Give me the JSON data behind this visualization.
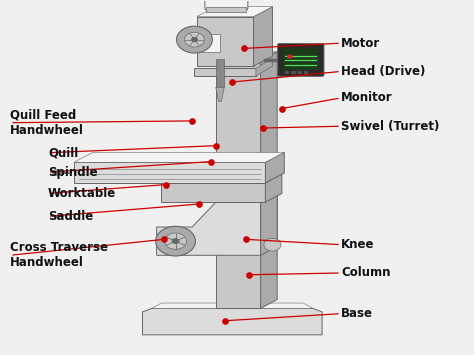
{
  "bg_color": "#f0f0f0",
  "line_color": "#cc0000",
  "dot_color": "#cc0000",
  "text_color": "#111111",
  "font_size": 8.5,
  "font_weight": "bold",
  "machine_colors": {
    "light": "#dcdcdc",
    "mid": "#c8c8c8",
    "dark": "#aaaaaa",
    "darker": "#888888",
    "edge": "#666666",
    "white": "#f4f4f4",
    "shadow": "#b0b0b0"
  },
  "annotations": [
    {
      "text": "Motor",
      "dot": [
        0.515,
        0.865
      ],
      "label": [
        0.72,
        0.88
      ],
      "ha": "left"
    },
    {
      "text": "Head (Drive)",
      "dot": [
        0.49,
        0.77
      ],
      "label": [
        0.72,
        0.8
      ],
      "ha": "left"
    },
    {
      "text": "Monitor",
      "dot": [
        0.595,
        0.695
      ],
      "label": [
        0.72,
        0.725
      ],
      "ha": "left"
    },
    {
      "text": "Swivel (Turret)",
      "dot": [
        0.555,
        0.64
      ],
      "label": [
        0.72,
        0.645
      ],
      "ha": "left"
    },
    {
      "text": "Quill Feed\nHandwheel",
      "dot": [
        0.405,
        0.66
      ],
      "label": [
        0.02,
        0.655
      ],
      "ha": "left"
    },
    {
      "text": "Quill",
      "dot": [
        0.455,
        0.59
      ],
      "label": [
        0.1,
        0.57
      ],
      "ha": "left"
    },
    {
      "text": "Spindle",
      "dot": [
        0.445,
        0.545
      ],
      "label": [
        0.1,
        0.515
      ],
      "ha": "left"
    },
    {
      "text": "Worktable",
      "dot": [
        0.35,
        0.48
      ],
      "label": [
        0.1,
        0.455
      ],
      "ha": "left"
    },
    {
      "text": "Saddle",
      "dot": [
        0.42,
        0.425
      ],
      "label": [
        0.1,
        0.39
      ],
      "ha": "left"
    },
    {
      "text": "Cross Traverse\nHandwheel",
      "dot": [
        0.345,
        0.325
      ],
      "label": [
        0.02,
        0.28
      ],
      "ha": "left"
    },
    {
      "text": "Knee",
      "dot": [
        0.52,
        0.325
      ],
      "label": [
        0.72,
        0.31
      ],
      "ha": "left"
    },
    {
      "text": "Column",
      "dot": [
        0.525,
        0.225
      ],
      "label": [
        0.72,
        0.23
      ],
      "ha": "left"
    },
    {
      "text": "Base",
      "dot": [
        0.475,
        0.095
      ],
      "label": [
        0.72,
        0.115
      ],
      "ha": "left"
    }
  ]
}
